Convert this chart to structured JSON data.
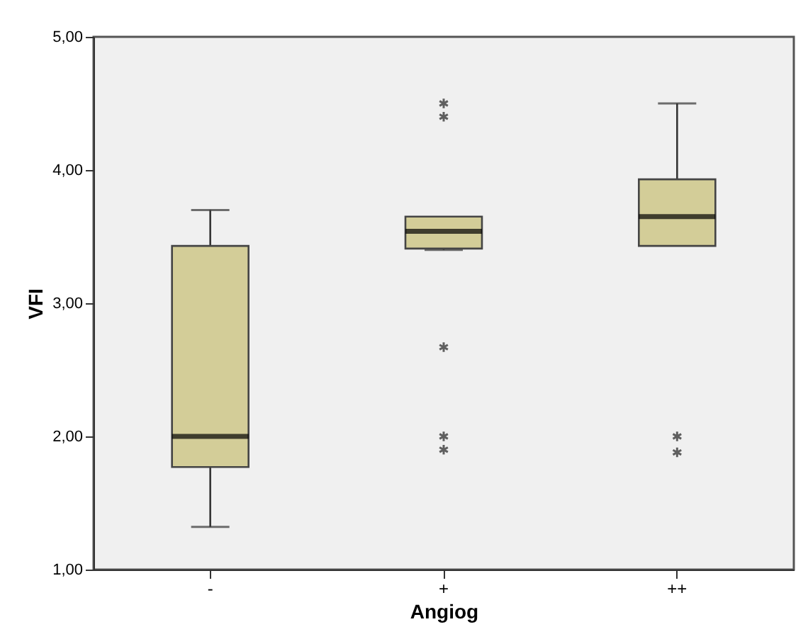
{
  "chart_data": {
    "type": "box",
    "xlabel": "Angiog",
    "ylabel": "VFI",
    "categories": [
      "-",
      "+",
      "++"
    ],
    "series": [
      {
        "color": "#d3cd98",
        "boxes": [
          {
            "low": 1.32,
            "q1": 1.77,
            "median": 2.0,
            "q3": 3.43,
            "high": 3.7
          },
          {
            "low": 3.4,
            "q1": 3.41,
            "median": 3.54,
            "q3": 3.65,
            "high": 3.65,
            "outliers": [
              4.5,
              4.4,
              2.67,
              2.0,
              1.9
            ]
          },
          {
            "low": 3.43,
            "q1": 3.43,
            "median": 3.65,
            "q3": 3.93,
            "high": 4.5,
            "outliers": [
              2.0,
              1.88
            ]
          }
        ]
      }
    ],
    "ylim": [
      1,
      5
    ],
    "yticks": [
      {
        "value": 1,
        "label": "1,00"
      },
      {
        "value": 2,
        "label": "2,00"
      },
      {
        "value": 3,
        "label": "3,00"
      },
      {
        "value": 4,
        "label": "4,00"
      },
      {
        "value": 5,
        "label": "5,00"
      }
    ],
    "marker": "star",
    "grid": false
  }
}
